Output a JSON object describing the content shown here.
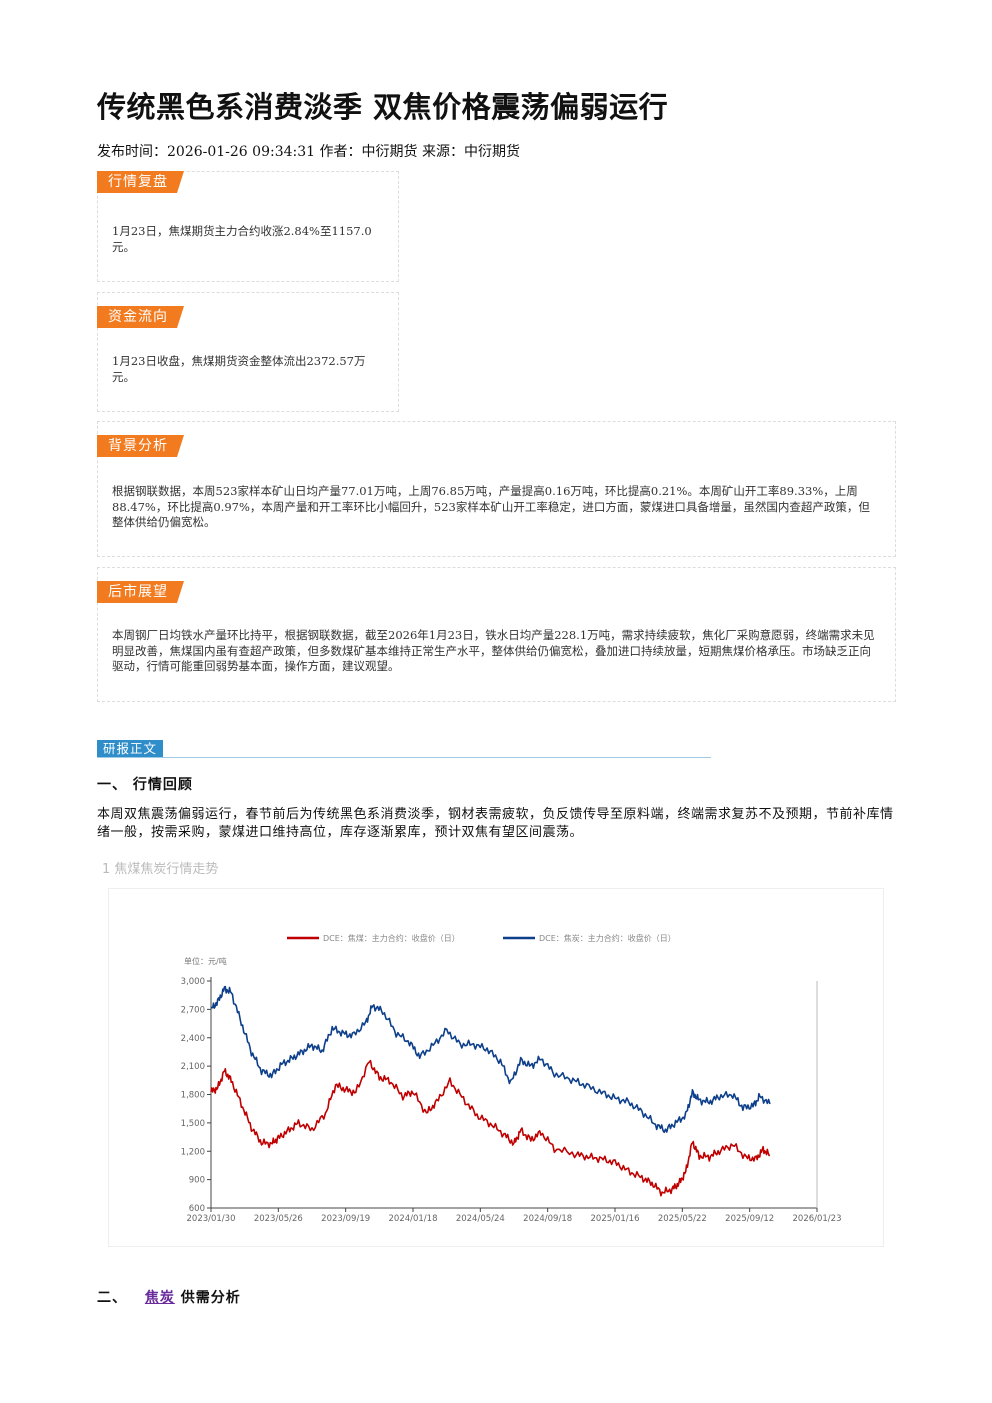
{
  "article": {
    "title": "传统黑色系消费淡季 双焦价格震荡偏弱运行",
    "meta": "发布时间：2026-01-26 09:34:31 作者：中衍期货 来源：中衍期货"
  },
  "sections": [
    {
      "tag": "行情复盘",
      "text": "1月23日，焦煤期货主力合约收涨2.84%至1157.0元。"
    },
    {
      "tag": "资金流向",
      "text": "1月23日收盘，焦煤期货资金整体流出2372.57万元。"
    },
    {
      "tag": "背景分析",
      "text": "根据钢联数据，本周523家样本矿山日均产量77.01万吨，上周76.85万吨，产量提高0.16万吨，环比提高0.21%。本周矿山开工率89.33%，上周88.47%，环比提高0.97%，本周产量和开工率环比小幅回升，523家样本矿山开工率稳定，进口方面，蒙煤进口具备增量，虽然国内查超产政策，但整体供给仍偏宽松。"
    },
    {
      "tag": "后市展望",
      "text": "本周钢厂日均铁水产量环比持平，根据钢联数据，截至2026年1月23日，铁水日均产量228.1万吨，需求持续疲软，焦化厂采购意愿弱，终端需求未见明显改善，焦煤国内虽有查超产政策，但多数煤矿基本维持正常生产水平，整体供给仍偏宽松，叠加进口持续放量，短期焦煤价格承压。市场缺乏正向驱动，行情可能重回弱势基本面，操作方面，建议观望。"
    }
  ],
  "research": {
    "label": "研报正文",
    "h1": "一、 行情回顾",
    "paragraph": "本周双焦震荡偏弱运行，春节前后为传统黑色系消费淡季，钢材表需疲软，负反馈传导至原料端，终端需求复苏不及预期，节前补库情绪一般，按需采购，蒙煤进口维持高位，库存逐渐累库，预计双焦有望区间震荡。",
    "figure_caption": "1  焦煤焦炭行情走势",
    "h2_prefix": "二、 ",
    "h2_link": "焦炭",
    "h2_suffix": " 供需分析"
  },
  "colors": {
    "accent_orange": "#f27a1f",
    "coking_coal_red": "#c00000",
    "coke_blue": "#0d3f8a"
  },
  "chart_data": {
    "type": "line",
    "unit_label": "单位：元/吨",
    "ylim": [
      600,
      3000
    ],
    "y_ticks": [
      "3,000",
      "2,700",
      "2,400",
      "2,100",
      "1,800",
      "1,500",
      "1,200",
      "900",
      "600"
    ],
    "x_ticks": [
      "2023/01/30",
      "2023/05/26",
      "2023/09/19",
      "2024/01/18",
      "2024/05/24",
      "2024/09/18",
      "2025/01/16",
      "2025/05/22",
      "2025/09/12",
      "2026/01/23"
    ],
    "grid": false,
    "legend_position": "top-center",
    "series": [
      {
        "name": "DCE：焦煤：主力合约：收盘价（日）",
        "color": "#c00000",
        "points": [
          [
            0,
            1830
          ],
          [
            0.1,
            1870
          ],
          [
            0.2,
            2050
          ],
          [
            0.3,
            1950
          ],
          [
            0.45,
            1700
          ],
          [
            0.6,
            1450
          ],
          [
            0.75,
            1290
          ],
          [
            0.9,
            1280
          ],
          [
            1.0,
            1340
          ],
          [
            1.15,
            1420
          ],
          [
            1.3,
            1500
          ],
          [
            1.5,
            1430
          ],
          [
            1.7,
            1600
          ],
          [
            1.85,
            1900
          ],
          [
            2.0,
            1850
          ],
          [
            2.15,
            1820
          ],
          [
            2.35,
            2150
          ],
          [
            2.5,
            1980
          ],
          [
            2.65,
            1950
          ],
          [
            2.85,
            1780
          ],
          [
            3.0,
            1830
          ],
          [
            3.2,
            1600
          ],
          [
            3.35,
            1720
          ],
          [
            3.55,
            1940
          ],
          [
            3.75,
            1750
          ],
          [
            3.95,
            1580
          ],
          [
            4.15,
            1490
          ],
          [
            4.35,
            1380
          ],
          [
            4.5,
            1280
          ],
          [
            4.6,
            1420
          ],
          [
            4.75,
            1320
          ],
          [
            4.9,
            1400
          ],
          [
            5.1,
            1230
          ],
          [
            5.4,
            1170
          ],
          [
            5.6,
            1140
          ],
          [
            5.8,
            1120
          ],
          [
            6.0,
            1080
          ],
          [
            6.2,
            990
          ],
          [
            6.4,
            920
          ],
          [
            6.55,
            860
          ],
          [
            6.7,
            760
          ],
          [
            6.85,
            800
          ],
          [
            6.95,
            860
          ],
          [
            7.05,
            980
          ],
          [
            7.15,
            1300
          ],
          [
            7.25,
            1150
          ],
          [
            7.4,
            1140
          ],
          [
            7.55,
            1200
          ],
          [
            7.75,
            1270
          ],
          [
            7.95,
            1130
          ],
          [
            8.1,
            1120
          ],
          [
            8.2,
            1220
          ],
          [
            8.3,
            1157
          ]
        ]
      },
      {
        "name": "DCE：焦炭：主力合约：收盘价（日）",
        "color": "#0d3f8a",
        "points": [
          [
            0,
            2700
          ],
          [
            0.1,
            2780
          ],
          [
            0.2,
            2920
          ],
          [
            0.3,
            2880
          ],
          [
            0.45,
            2560
          ],
          [
            0.6,
            2250
          ],
          [
            0.75,
            2050
          ],
          [
            0.9,
            2000
          ],
          [
            1.05,
            2120
          ],
          [
            1.2,
            2180
          ],
          [
            1.35,
            2250
          ],
          [
            1.5,
            2320
          ],
          [
            1.65,
            2260
          ],
          [
            1.8,
            2500
          ],
          [
            1.95,
            2450
          ],
          [
            2.1,
            2420
          ],
          [
            2.3,
            2560
          ],
          [
            2.4,
            2740
          ],
          [
            2.55,
            2680
          ],
          [
            2.75,
            2450
          ],
          [
            2.95,
            2350
          ],
          [
            3.1,
            2200
          ],
          [
            3.3,
            2320
          ],
          [
            3.5,
            2480
          ],
          [
            3.7,
            2330
          ],
          [
            3.9,
            2330
          ],
          [
            4.1,
            2280
          ],
          [
            4.3,
            2150
          ],
          [
            4.45,
            1920
          ],
          [
            4.6,
            2160
          ],
          [
            4.75,
            2100
          ],
          [
            4.9,
            2180
          ],
          [
            5.1,
            2020
          ],
          [
            5.35,
            1960
          ],
          [
            5.55,
            1900
          ],
          [
            5.8,
            1820
          ],
          [
            6.0,
            1760
          ],
          [
            6.2,
            1720
          ],
          [
            6.4,
            1620
          ],
          [
            6.6,
            1480
          ],
          [
            6.75,
            1420
          ],
          [
            6.9,
            1500
          ],
          [
            7.05,
            1580
          ],
          [
            7.15,
            1820
          ],
          [
            7.25,
            1740
          ],
          [
            7.4,
            1720
          ],
          [
            7.55,
            1780
          ],
          [
            7.75,
            1800
          ],
          [
            7.9,
            1660
          ],
          [
            8.05,
            1680
          ],
          [
            8.15,
            1780
          ],
          [
            8.3,
            1700
          ]
        ]
      }
    ]
  }
}
